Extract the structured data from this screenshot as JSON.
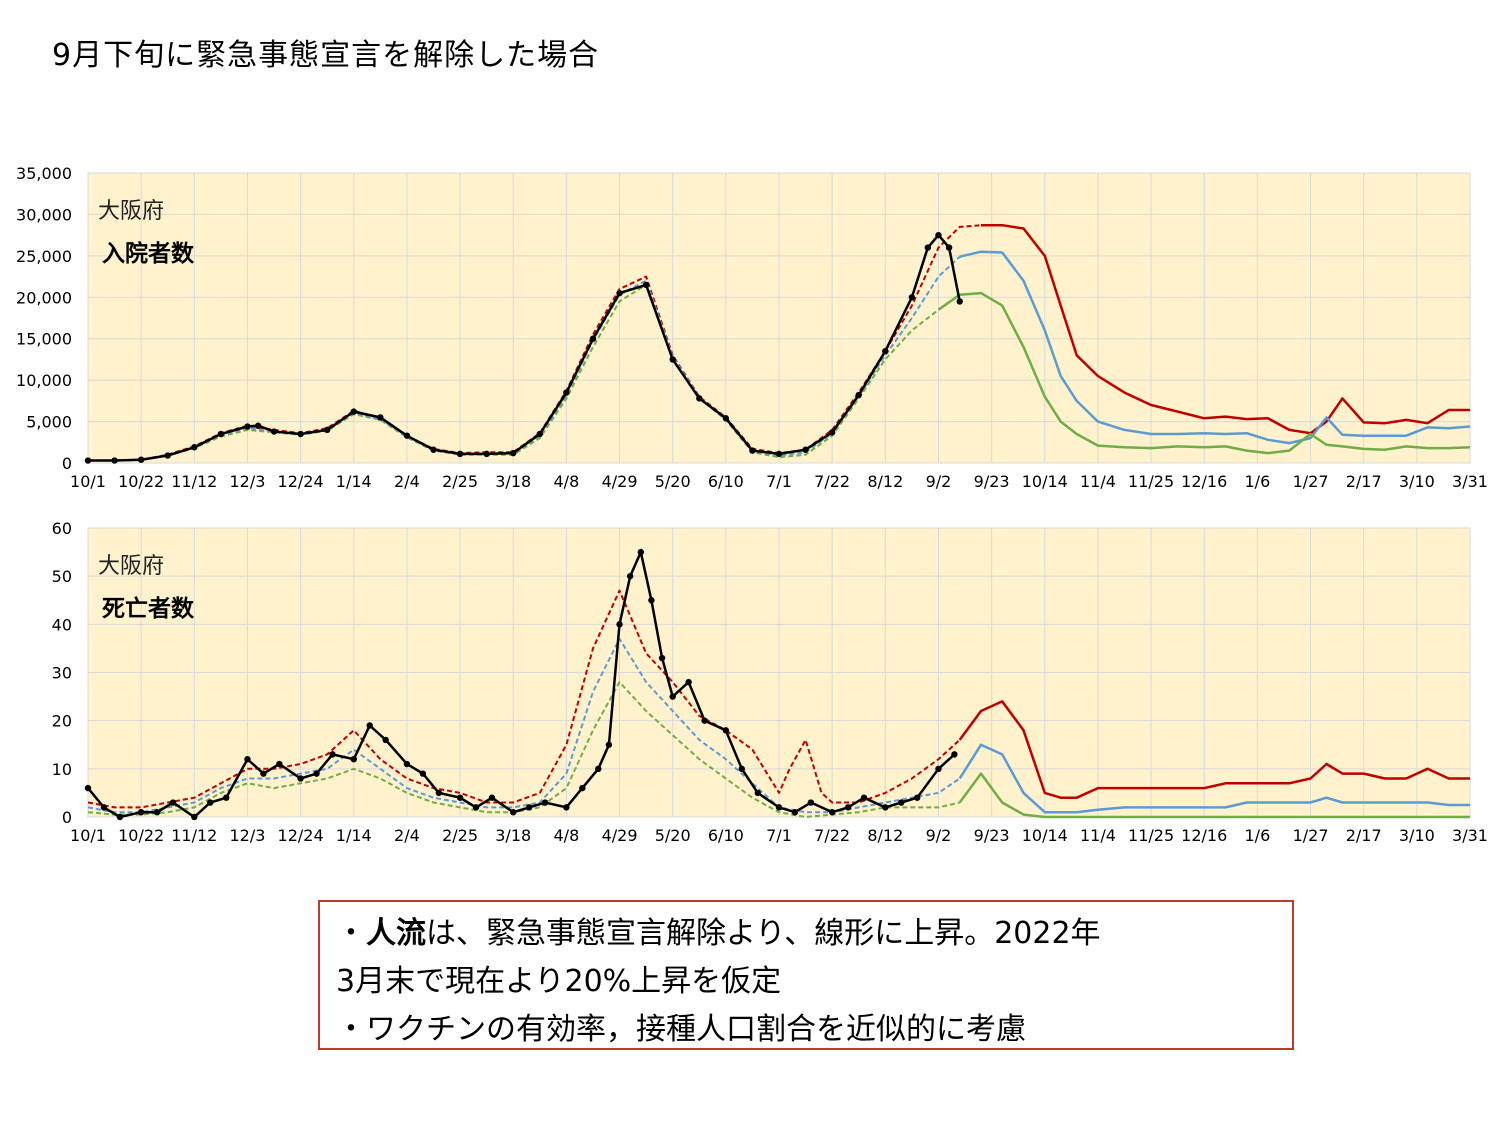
{
  "title": "9月下旬に緊急事態宣言を解除した場合",
  "notes": {
    "line1_bullet": "・",
    "line1_bold": "人流",
    "line1_rest": "は、緊急事態宣言解除より、線形に上昇。2022年",
    "line2": "3月末で現在より20%上昇を仮定",
    "line3": "・ワクチンの有効率，接種人口割合を近似的に考慮"
  },
  "colors": {
    "red": "#c00000",
    "blue": "#5b9bd5",
    "green": "#70ad47",
    "obs": "#000000",
    "bg": "#fff2cc",
    "grid": "#d9d9d9"
  },
  "chart_data": [
    {
      "type": "line",
      "region": "大阪府",
      "label": "入院者数",
      "x_ticks": [
        "10/1",
        "10/22",
        "11/12",
        "12/3",
        "12/24",
        "1/14",
        "2/4",
        "2/25",
        "3/18",
        "4/8",
        "4/29",
        "5/20",
        "6/10",
        "7/1",
        "7/22",
        "8/12",
        "9/2",
        "9/23",
        "10/14",
        "11/4",
        "11/25",
        "12/16",
        "1/6",
        "1/27",
        "2/17",
        "3/10",
        "3/31"
      ],
      "y_ticks": [
        "0",
        "5,000",
        "10,000",
        "15,000",
        "20,000",
        "25,000",
        "30,000",
        "35,000"
      ],
      "ylim": [
        0,
        35000
      ],
      "series": [
        {
          "color": "red",
          "style": "solid",
          "x": [
            16.8,
            17.2,
            17.6,
            18,
            18.3,
            18.6,
            19,
            19.5,
            20,
            20.5,
            21,
            21.4,
            21.8,
            22.2,
            22.6,
            23,
            23.3,
            23.6,
            24,
            24.4,
            24.8,
            25.2,
            25.6,
            26
          ],
          "y": [
            28700,
            28700,
            28300,
            25000,
            19000,
            13000,
            10500,
            8500,
            7000,
            6200,
            5400,
            5600,
            5300,
            5400,
            4000,
            3600,
            5000,
            7800,
            4900,
            4800,
            5200,
            4800,
            6400,
            6400
          ]
        },
        {
          "color": "blue",
          "style": "solid",
          "x": [
            16.4,
            16.8,
            17.2,
            17.6,
            18,
            18.3,
            18.6,
            19,
            19.5,
            20,
            20.5,
            21,
            21.4,
            21.8,
            22.2,
            22.6,
            23,
            23.3,
            23.6,
            24,
            24.4,
            24.8,
            25.2,
            25.6,
            26
          ],
          "y": [
            24900,
            25500,
            25400,
            22000,
            16000,
            10500,
            7500,
            5000,
            4000,
            3500,
            3500,
            3600,
            3500,
            3600,
            2800,
            2400,
            3000,
            5500,
            3400,
            3300,
            3300,
            3300,
            4300,
            4200,
            4400
          ]
        },
        {
          "color": "green",
          "style": "solid",
          "x": [
            16,
            16.4,
            16.8,
            17.2,
            17.6,
            18,
            18.3,
            18.6,
            19,
            19.5,
            20,
            20.5,
            21,
            21.4,
            21.8,
            22.2,
            22.6,
            23,
            23.3,
            23.6,
            24,
            24.4,
            24.8,
            25.2,
            25.6,
            26
          ],
          "y": [
            18500,
            20300,
            20500,
            19000,
            14000,
            8000,
            5000,
            3500,
            2100,
            1900,
            1800,
            2000,
            1900,
            2000,
            1500,
            1200,
            1500,
            3500,
            2200,
            2000,
            1700,
            1600,
            2000,
            1800,
            1800,
            1900
          ]
        },
        {
          "color": "red",
          "style": "dashed",
          "x": [
            0,
            0.5,
            1,
            1.5,
            2,
            2.5,
            3,
            3.5,
            4,
            4.5,
            5,
            5.5,
            6,
            6.5,
            7,
            7.5,
            8,
            8.5,
            9,
            9.5,
            10,
            10.5,
            11,
            11.5,
            12,
            12.5,
            13,
            13.5,
            14,
            14.5,
            15,
            15.5,
            16,
            16.4,
            16.8
          ],
          "y": [
            300,
            300,
            400,
            1000,
            2000,
            3600,
            4500,
            4000,
            3600,
            4200,
            6300,
            5400,
            3300,
            1700,
            1200,
            1300,
            1300,
            3600,
            8700,
            15500,
            21000,
            22500,
            13000,
            8000,
            5500,
            1700,
            1200,
            1600,
            4000,
            8500,
            13500,
            19000,
            26000,
            28500,
            28700
          ]
        },
        {
          "color": "green",
          "style": "dashed",
          "x": [
            0,
            0.5,
            1,
            1.5,
            2,
            2.5,
            3,
            3.5,
            4,
            4.5,
            5,
            5.5,
            6,
            6.5,
            7,
            7.5,
            8,
            8.5,
            9,
            9.5,
            10,
            10.5,
            11,
            11.5,
            12,
            12.5,
            13,
            13.5,
            14,
            14.5,
            15,
            15.5,
            16
          ],
          "y": [
            300,
            300,
            400,
            900,
            1800,
            3200,
            4000,
            3700,
            3400,
            3900,
            5900,
            5200,
            3100,
            1500,
            1000,
            1000,
            1000,
            3000,
            7800,
            14000,
            19500,
            21500,
            12500,
            7800,
            5200,
            1300,
            700,
            1000,
            3300,
            7800,
            12500,
            16000,
            18500
          ]
        },
        {
          "color": "blue",
          "style": "dashed",
          "x": [
            0,
            0.5,
            1,
            1.5,
            2,
            2.5,
            3,
            3.5,
            4,
            4.5,
            5,
            5.5,
            6,
            6.5,
            7,
            7.5,
            8,
            8.5,
            9,
            9.5,
            10,
            10.5,
            11,
            11.5,
            12,
            12.5,
            13,
            13.5,
            14,
            14.5,
            15,
            15.5,
            16,
            16.4
          ],
          "y": [
            300,
            300,
            400,
            950,
            1900,
            3400,
            4200,
            3800,
            3500,
            4000,
            6100,
            5300,
            3200,
            1600,
            1100,
            1150,
            1150,
            3300,
            8200,
            14800,
            20300,
            22000,
            12800,
            7900,
            5300,
            1500,
            900,
            1300,
            3600,
            8100,
            13000,
            17500,
            22500,
            24900
          ]
        },
        {
          "color": "obs",
          "style": "scatter",
          "x": [
            0,
            0.5,
            1,
            1.5,
            2,
            2.5,
            3,
            3.2,
            3.5,
            4,
            4.5,
            5,
            5.5,
            6,
            6.5,
            7,
            7.5,
            8,
            8.5,
            9,
            9.5,
            10,
            10.5,
            11,
            11.5,
            12,
            12.5,
            13,
            13.5,
            14,
            14.5,
            15,
            15.5,
            15.8,
            16,
            16.2,
            16.4
          ],
          "y": [
            300,
            300,
            400,
            900,
            1900,
            3500,
            4400,
            4500,
            3800,
            3500,
            4000,
            6200,
            5500,
            3300,
            1600,
            1100,
            1100,
            1200,
            3500,
            8500,
            15000,
            20500,
            21500,
            12500,
            7800,
            5400,
            1500,
            1100,
            1600,
            3700,
            8200,
            13500,
            20000,
            26000,
            27500,
            26000,
            19500
          ]
        }
      ]
    },
    {
      "type": "line",
      "region": "大阪府",
      "label": "死亡者数",
      "x_ticks": [
        "10/1",
        "10/22",
        "11/12",
        "12/3",
        "12/24",
        "1/14",
        "2/4",
        "2/25",
        "3/18",
        "4/8",
        "4/29",
        "5/20",
        "6/10",
        "7/1",
        "7/22",
        "8/12",
        "9/2",
        "9/23",
        "10/14",
        "11/4",
        "11/25",
        "12/16",
        "1/6",
        "1/27",
        "2/17",
        "3/10",
        "3/31"
      ],
      "y_ticks": [
        "0",
        "10",
        "20",
        "30",
        "40",
        "50",
        "60"
      ],
      "ylim": [
        0,
        60
      ],
      "series": [
        {
          "color": "red",
          "style": "solid",
          "x": [
            16.4,
            16.8,
            17.2,
            17.6,
            18,
            18.3,
            18.6,
            19,
            19.5,
            20,
            20.5,
            21,
            21.4,
            21.8,
            22.2,
            22.6,
            23,
            23.3,
            23.6,
            24,
            24.4,
            24.8,
            25.2,
            25.6,
            26
          ],
          "y": [
            16,
            22,
            24,
            18,
            5,
            4,
            4,
            6,
            6,
            6,
            6,
            6,
            7,
            7,
            7,
            7,
            8,
            11,
            9,
            9,
            8,
            8,
            10,
            8,
            8
          ]
        },
        {
          "color": "blue",
          "style": "solid",
          "x": [
            16.4,
            16.8,
            17.2,
            17.6,
            18,
            18.3,
            18.6,
            19,
            19.5,
            20,
            20.5,
            21,
            21.4,
            21.8,
            22.2,
            22.6,
            23,
            23.3,
            23.6,
            24,
            24.4,
            24.8,
            25.2,
            25.6,
            26
          ],
          "y": [
            8,
            15,
            13,
            5,
            1,
            1,
            1,
            1.5,
            2,
            2,
            2,
            2,
            2,
            3,
            3,
            3,
            3,
            4,
            3,
            3,
            3,
            3,
            3,
            2.5,
            2.5
          ]
        },
        {
          "color": "green",
          "style": "solid",
          "x": [
            16.4,
            16.8,
            17.2,
            17.6,
            18,
            18.3,
            18.6,
            19,
            19.5,
            20,
            20.5,
            21,
            21.4,
            21.8,
            22.2,
            22.6,
            23,
            23.3,
            23.6,
            24,
            24.4,
            24.8,
            25.2,
            25.6,
            26
          ],
          "y": [
            3,
            9,
            3,
            0.5,
            0,
            0,
            0,
            0,
            0,
            0,
            0,
            0,
            0,
            0,
            0,
            0,
            0,
            0,
            0,
            0,
            0,
            0,
            0,
            0,
            0
          ]
        },
        {
          "color": "red",
          "style": "dashed",
          "x": [
            0,
            0.5,
            1,
            1.5,
            2,
            2.5,
            3,
            3.5,
            4,
            4.5,
            5,
            5.5,
            6,
            6.5,
            7,
            7.5,
            8,
            8.5,
            9,
            9.5,
            10,
            10.5,
            11,
            11.5,
            12,
            12.5,
            13,
            13.2,
            13.5,
            13.8,
            14,
            14.5,
            15,
            15.5,
            16,
            16.4
          ],
          "y": [
            3,
            2,
            2,
            3,
            4,
            7,
            10,
            10,
            11,
            13,
            18,
            12,
            8,
            6,
            5,
            3,
            3,
            5,
            15,
            35,
            47,
            34,
            28,
            21,
            18,
            14,
            5,
            10,
            16,
            5,
            3,
            3,
            5,
            8,
            12,
            16
          ]
        },
        {
          "color": "green",
          "style": "dashed",
          "x": [
            0,
            0.5,
            1,
            1.5,
            2,
            2.5,
            3,
            3.5,
            4,
            4.5,
            5,
            5.5,
            6,
            6.5,
            7,
            7.5,
            8,
            8.5,
            9,
            9.5,
            10,
            10.5,
            11,
            11.5,
            12,
            12.5,
            13,
            13.5,
            14,
            14.5,
            15,
            15.5,
            16,
            16.4
          ],
          "y": [
            1,
            0.5,
            0.5,
            1,
            2,
            5,
            7,
            6,
            7,
            8,
            10,
            8,
            5,
            3,
            2,
            1,
            1,
            2,
            6,
            18,
            28,
            22,
            17,
            12,
            8,
            4,
            1,
            0,
            0.5,
            1,
            2,
            2,
            2,
            3
          ]
        },
        {
          "color": "blue",
          "style": "dashed",
          "x": [
            0,
            0.5,
            1,
            1.5,
            2,
            2.5,
            3,
            3.5,
            4,
            4.5,
            5,
            5.5,
            6,
            6.5,
            7,
            7.5,
            8,
            8.5,
            9,
            9.5,
            10,
            10.5,
            11,
            11.5,
            12,
            12.5,
            13,
            13.5,
            14,
            14.5,
            15,
            15.5,
            16,
            16.4
          ],
          "y": [
            2,
            1,
            1,
            2,
            3,
            6,
            8,
            8,
            9,
            10,
            14,
            10,
            6,
            4,
            3,
            2,
            2,
            3,
            9,
            26,
            37,
            28,
            22,
            16,
            12,
            7,
            2,
            1,
            1,
            2,
            3,
            4,
            5,
            8
          ]
        },
        {
          "color": "obs",
          "style": "scatter",
          "x": [
            0,
            0.3,
            0.6,
            1,
            1.3,
            1.6,
            2,
            2.3,
            2.6,
            3,
            3.3,
            3.6,
            4,
            4.3,
            4.6,
            5,
            5.3,
            5.6,
            6,
            6.3,
            6.6,
            7,
            7.3,
            7.6,
            8,
            8.3,
            8.6,
            9,
            9.3,
            9.6,
            9.8,
            10,
            10.2,
            10.4,
            10.6,
            10.8,
            11,
            11.3,
            11.6,
            12,
            12.3,
            12.6,
            13,
            13.3,
            13.6,
            14,
            14.3,
            14.6,
            15,
            15.3,
            15.6,
            16,
            16.3
          ],
          "y": [
            6,
            2,
            0,
            1,
            1,
            3,
            0,
            3,
            4,
            12,
            9,
            11,
            8,
            9,
            13,
            12,
            19,
            16,
            11,
            9,
            5,
            4,
            2,
            4,
            1,
            2,
            3,
            2,
            6,
            10,
            15,
            40,
            50,
            55,
            45,
            33,
            25,
            28,
            20,
            18,
            10,
            5,
            2,
            1,
            3,
            1,
            2,
            4,
            2,
            3,
            4,
            10,
            13
          ]
        }
      ]
    }
  ]
}
